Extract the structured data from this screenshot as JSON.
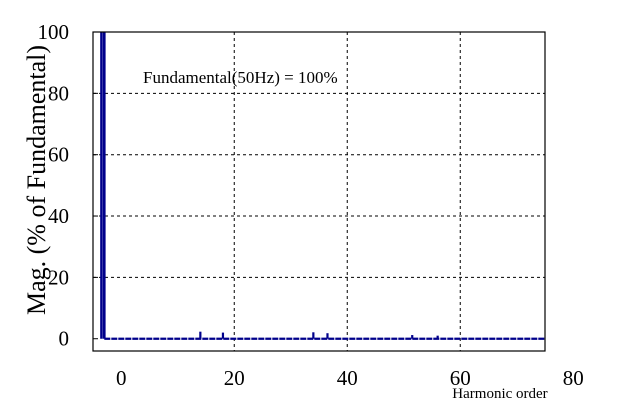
{
  "chart_data": {
    "type": "bar",
    "title": "",
    "xlabel": "Harmonic order",
    "ylabel": "Mag.  (% of  Fundamental)",
    "annotation": "Fundamental(50Hz) = 100%",
    "x_ticks": [
      "0",
      "20",
      "40",
      "60",
      "80"
    ],
    "y_ticks": [
      "0",
      "20",
      "40",
      "60",
      "80",
      "100"
    ],
    "xlim": [
      -5,
      75
    ],
    "ylim": [
      -4,
      100
    ],
    "grid": true,
    "colors": {
      "bars": "#00008b",
      "axes": "#000000",
      "grid": "#000000"
    },
    "series": [
      {
        "x": [
          -3.5,
          -3,
          14,
          18,
          34,
          36.5,
          51.5,
          56
        ],
        "values": [
          100,
          100,
          2.3,
          2.0,
          2.1,
          1.8,
          1.2,
          1.0
        ]
      }
    ]
  }
}
